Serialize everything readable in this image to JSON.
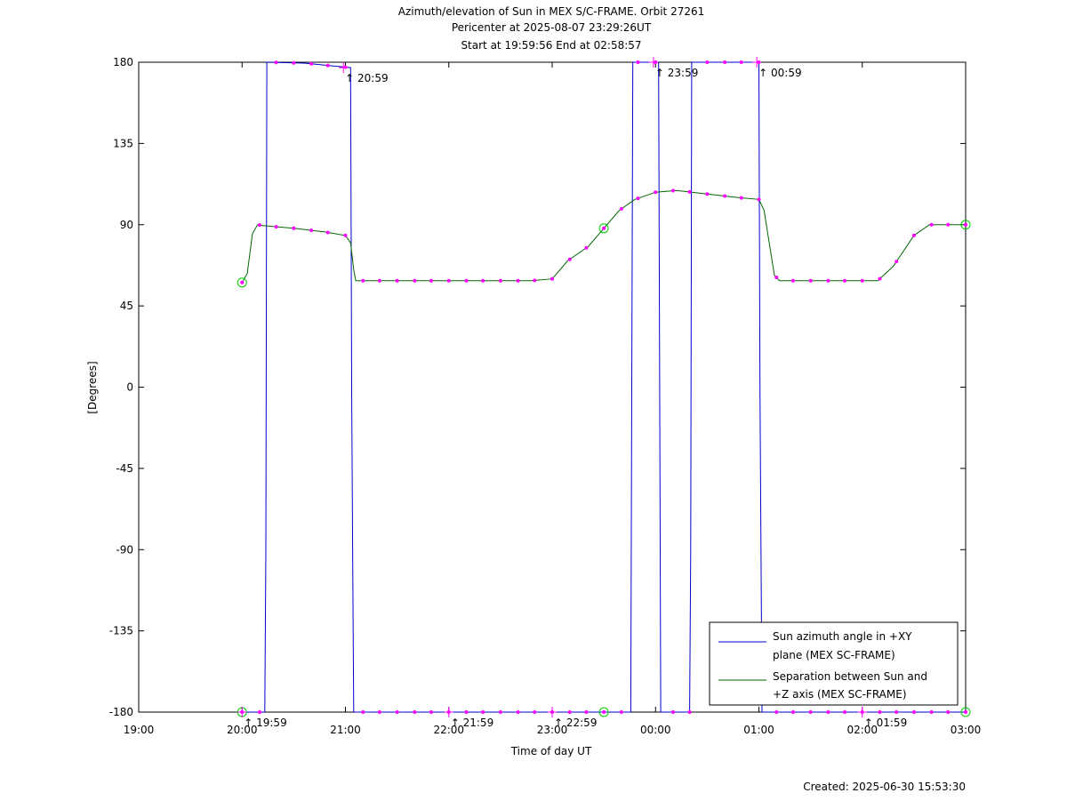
{
  "chart_data": {
    "type": "line",
    "title": [
      "Azimuth/elevation of Sun in MEX S/C-FRAME.  Orbit 27261",
      "Pericenter at 2025-08-07 23:29:26UT",
      "Start at 19:59:56 End at 02:58:57"
    ],
    "xlabel": "Time of day UT",
    "ylabel": "[Degrees]",
    "xlim_hours": [
      19,
      27
    ],
    "ylim": [
      -180,
      180
    ],
    "x_ticks": [
      {
        "h": 19,
        "label": "19:00"
      },
      {
        "h": 20,
        "label": "20:00"
      },
      {
        "h": 21,
        "label": "21:00"
      },
      {
        "h": 22,
        "label": "22:00"
      },
      {
        "h": 23,
        "label": "23:00"
      },
      {
        "h": 24,
        "label": "00:00"
      },
      {
        "h": 25,
        "label": "01:00"
      },
      {
        "h": 26,
        "label": "02:00"
      },
      {
        "h": 27,
        "label": "03:00"
      }
    ],
    "y_ticks": [
      {
        "v": 180,
        "label": "180"
      },
      {
        "v": 135,
        "label": "135"
      },
      {
        "v": 90,
        "label": "90"
      },
      {
        "v": 45,
        "label": "45"
      },
      {
        "v": 0,
        "label": "0"
      },
      {
        "v": -45,
        "label": "-45"
      },
      {
        "v": -90,
        "label": "-90"
      },
      {
        "v": -135,
        "label": "-135"
      },
      {
        "v": -180,
        "label": "-180"
      }
    ],
    "grid": false,
    "legend_position": "bottom-right",
    "series": [
      {
        "name": "Sun azimuth angle in +XY plane (MEX SC-FRAME)",
        "legend_lines": [
          "Sun azimuth angle in +XY",
          "plane (MEX SC-FRAME)"
        ],
        "color": "#0000cc",
        "points": [
          [
            20.0,
            -180
          ],
          [
            20.22,
            -180
          ],
          [
            20.23,
            -90
          ],
          [
            20.24,
            180
          ],
          [
            20.6,
            179.5
          ],
          [
            21.05,
            177
          ],
          [
            21.06,
            0
          ],
          [
            21.07,
            -90
          ],
          [
            21.08,
            -180
          ],
          [
            23.3,
            -180
          ],
          [
            23.76,
            -180
          ],
          [
            23.77,
            0
          ],
          [
            23.78,
            180
          ],
          [
            24.03,
            180
          ],
          [
            24.04,
            0
          ],
          [
            24.05,
            -180
          ],
          [
            24.33,
            -180
          ],
          [
            24.34,
            -90
          ],
          [
            24.35,
            180
          ],
          [
            25.0,
            180
          ],
          [
            25.01,
            0
          ],
          [
            25.03,
            -180
          ],
          [
            27.0,
            -180
          ]
        ]
      },
      {
        "name": "Separation between Sun and +Z axis (MEX SC-FRAME)",
        "legend_lines": [
          "Separation between Sun and",
          "+Z axis (MEX SC-FRAME)"
        ],
        "color": "#006600",
        "points": [
          [
            20.0,
            58
          ],
          [
            20.05,
            63
          ],
          [
            20.1,
            85
          ],
          [
            20.15,
            90
          ],
          [
            20.2,
            89.5
          ],
          [
            20.5,
            88
          ],
          [
            20.8,
            86
          ],
          [
            21.0,
            84
          ],
          [
            21.05,
            80
          ],
          [
            21.08,
            65
          ],
          [
            21.1,
            59
          ],
          [
            21.2,
            59
          ],
          [
            22.0,
            59
          ],
          [
            22.8,
            59
          ],
          [
            23.0,
            60
          ],
          [
            23.15,
            70
          ],
          [
            23.35,
            78
          ],
          [
            23.5,
            88
          ],
          [
            23.65,
            98
          ],
          [
            23.8,
            104
          ],
          [
            24.0,
            108
          ],
          [
            24.2,
            109
          ],
          [
            24.5,
            107
          ],
          [
            24.8,
            105
          ],
          [
            25.0,
            104
          ],
          [
            25.05,
            98
          ],
          [
            25.1,
            80
          ],
          [
            25.15,
            62
          ],
          [
            25.2,
            59
          ],
          [
            25.5,
            59
          ],
          [
            26.0,
            59
          ],
          [
            26.15,
            59
          ],
          [
            26.3,
            67
          ],
          [
            26.5,
            84
          ],
          [
            26.65,
            90
          ],
          [
            27.0,
            90
          ]
        ]
      }
    ],
    "marker_hours": [
      20.0,
      20.17,
      20.33,
      20.5,
      20.67,
      20.83,
      21.0,
      21.17,
      21.33,
      21.5,
      21.67,
      21.83,
      22.0,
      22.17,
      22.33,
      22.5,
      22.67,
      22.83,
      23.0,
      23.17,
      23.33,
      23.5,
      23.67,
      23.83,
      24.0,
      24.17,
      24.33,
      24.5,
      24.67,
      24.83,
      25.0,
      25.17,
      25.33,
      25.5,
      25.67,
      25.83,
      26.0,
      26.17,
      26.33,
      26.5,
      26.67,
      26.83,
      27.0
    ],
    "hour_marks": [
      {
        "h": 20.98,
        "label": "20:59",
        "series": "azimuth",
        "side": "below",
        "y": 177
      },
      {
        "h": 23.98,
        "label": "23:59",
        "series": "azimuth",
        "side": "below",
        "y": 180
      },
      {
        "h": 24.98,
        "label": "00:59",
        "series": "azimuth",
        "side": "below",
        "y": 180
      },
      {
        "h": 20.0,
        "label": "19:59",
        "series": "azimuth",
        "side": "above",
        "y": -180
      },
      {
        "h": 22.0,
        "label": "21:59",
        "series": "azimuth",
        "side": "above",
        "y": -180
      },
      {
        "h": 23.0,
        "label": "22:59",
        "series": "azimuth",
        "side": "above",
        "y": -180
      },
      {
        "h": 26.0,
        "label": "01:59",
        "series": "azimuth",
        "side": "above",
        "y": -180
      }
    ],
    "circle_marks": [
      {
        "h": 20.0,
        "y": 58
      },
      {
        "h": 23.5,
        "y": 88
      },
      {
        "h": 27.0,
        "y": 90
      },
      {
        "h": 20.0,
        "y": -180
      },
      {
        "h": 23.5,
        "y": -180
      },
      {
        "h": 27.0,
        "y": -180
      }
    ],
    "marker_color": "#ff00ff",
    "circle_color": "#00cc00",
    "created": "Created: 2025-06-30 15:53:30"
  }
}
